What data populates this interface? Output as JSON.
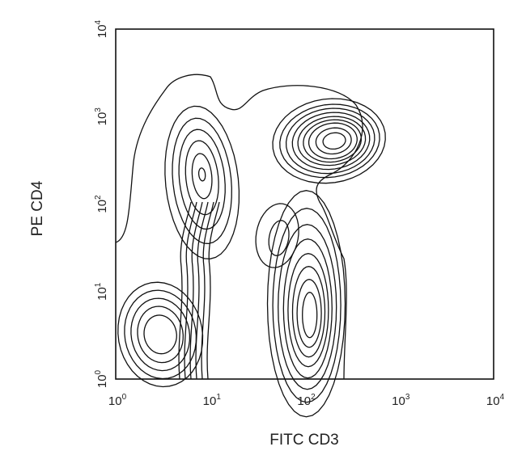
{
  "chart_data": {
    "type": "contour",
    "xlabel": "FITC CD3",
    "ylabel": "PE CD4",
    "xscale": "log",
    "yscale": "log",
    "xlim": [
      1,
      10000
    ],
    "ylim": [
      1,
      10000
    ],
    "grid": false,
    "x_ticks": [
      {
        "base": "10",
        "exp": "0",
        "value": 1
      },
      {
        "base": "10",
        "exp": "1",
        "value": 10
      },
      {
        "base": "10",
        "exp": "2",
        "value": 100
      },
      {
        "base": "10",
        "exp": "3",
        "value": 1000
      },
      {
        "base": "10",
        "exp": "4",
        "value": 10000
      }
    ],
    "y_ticks": [
      {
        "base": "10",
        "exp": "0",
        "value": 1
      },
      {
        "base": "10",
        "exp": "1",
        "value": 10
      },
      {
        "base": "10",
        "exp": "2",
        "value": 100
      },
      {
        "base": "10",
        "exp": "3",
        "value": 1000
      },
      {
        "base": "10",
        "exp": "4",
        "value": 10000
      }
    ],
    "populations": [
      {
        "center_x": 200,
        "center_y": 550,
        "levels": 9
      },
      {
        "center_x": 100,
        "center_y": 9,
        "levels": 8
      },
      {
        "center_x": 7,
        "center_y": 300,
        "levels": 6
      },
      {
        "center_x": 2,
        "center_y": 4,
        "levels": 5
      },
      {
        "center_x": 60,
        "center_y": 60,
        "levels": 2
      }
    ]
  }
}
